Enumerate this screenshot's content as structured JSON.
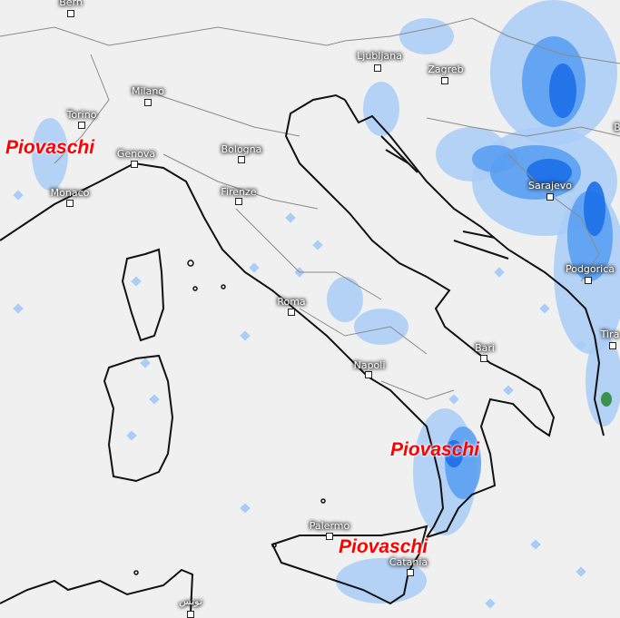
{
  "map": {
    "colors": {
      "background": "#f0f0f0",
      "rain_light": "#a9cdf7",
      "rain_medium": "#5aa0f2",
      "rain_heavy": "#1c6fe8",
      "rain_extreme": "#2e8b3a",
      "coast": "#111111",
      "borders": "#888888"
    },
    "cities": [
      {
        "name": "Bern"
      },
      {
        "name": "Milano"
      },
      {
        "name": "Torino"
      },
      {
        "name": "Genova"
      },
      {
        "name": "Monaco"
      },
      {
        "name": "Bologna"
      },
      {
        "name": "Firenze"
      },
      {
        "name": "Ljubljana"
      },
      {
        "name": "Zagreb"
      },
      {
        "name": "Sarajevo"
      },
      {
        "name": "Podgorica"
      },
      {
        "name": "Tira"
      },
      {
        "name": "Roma"
      },
      {
        "name": "Napoli"
      },
      {
        "name": "Bari"
      },
      {
        "name": "Palermo"
      },
      {
        "name": "Catania"
      },
      {
        "name": "تونس"
      },
      {
        "name": "B"
      }
    ],
    "annotations": [
      {
        "text": "Piovaschi"
      },
      {
        "text": "Piovaschi"
      },
      {
        "text": "Piovaschi"
      }
    ]
  }
}
